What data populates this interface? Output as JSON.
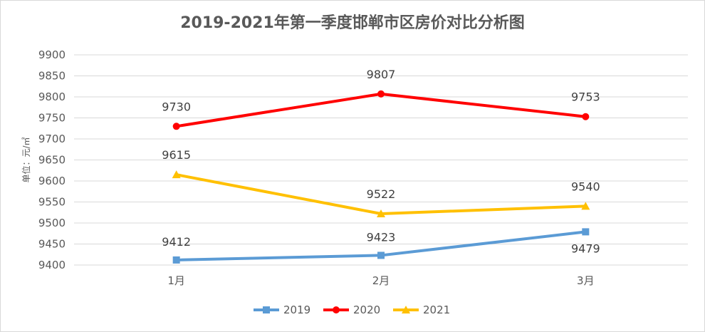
{
  "chart_data": {
    "type": "line",
    "title": "2019-2021年第一季度邯郸市区房价对比分析图",
    "ylabel": "单位：元/㎡",
    "xlabel": "",
    "categories": [
      "1月",
      "2月",
      "3月"
    ],
    "ylim": [
      9400,
      9900
    ],
    "ytick_step": 50,
    "grid": true,
    "legend_position": "bottom",
    "series": [
      {
        "name": "2019",
        "values": [
          9412,
          9423,
          9479
        ],
        "color": "#5b9bd5",
        "marker": "square"
      },
      {
        "name": "2020",
        "values": [
          9730,
          9807,
          9753
        ],
        "color": "#ff0000",
        "marker": "circle"
      },
      {
        "name": "2021",
        "values": [
          9615,
          9522,
          9540
        ],
        "color": "#ffc000",
        "marker": "triangle"
      }
    ]
  }
}
